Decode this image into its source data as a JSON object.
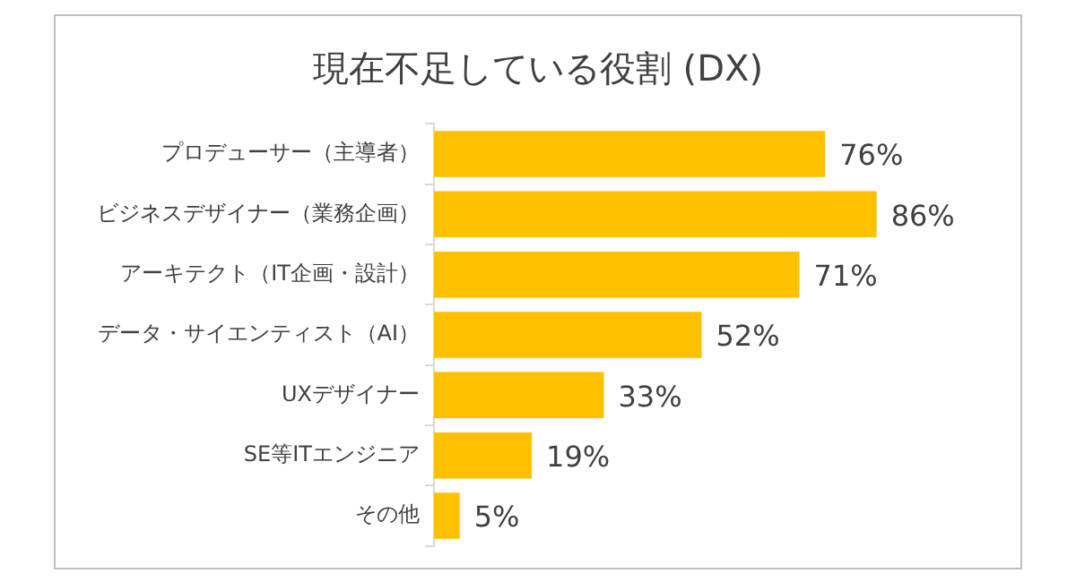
{
  "chart_data": {
    "type": "bar",
    "orientation": "horizontal",
    "title": "現在不足している役割 (DX)",
    "categories": [
      "プロデューサー（主導者）",
      "ビジネスデザイナー（業務企画）",
      "アーキテクト（IT企画・設計）",
      "データ・サイエンティスト（AI）",
      "UXデザイナー",
      "SE等ITエンジニア",
      "その他"
    ],
    "values": [
      76,
      86,
      71,
      52,
      33,
      19,
      5
    ],
    "value_labels": [
      "76%",
      "86%",
      "71%",
      "52%",
      "33%",
      "19%",
      "5%"
    ],
    "color": "#ffc000",
    "tick_labels": "y",
    "legend": false
  }
}
